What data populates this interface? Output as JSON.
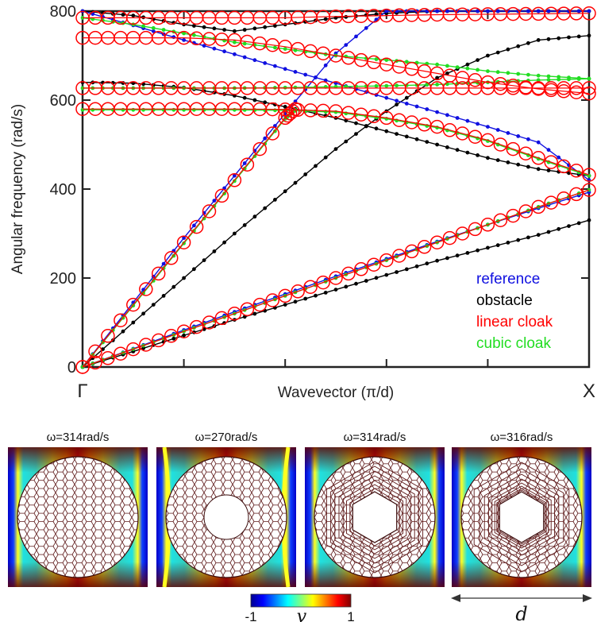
{
  "chart_data": {
    "type": "line",
    "xlabel": "Wavevector (π/d)",
    "ylabel": "Angular frequency (rad/s)",
    "ylim": [
      0,
      800
    ],
    "y_ticks": [
      "0",
      "200",
      "400",
      "600",
      "800"
    ],
    "x_range": [
      0,
      1
    ],
    "x_tick_labels": [
      {
        "value": 0,
        "label": "Γ"
      },
      {
        "value": 1,
        "label": "X"
      }
    ],
    "legend_position": "bottom-right",
    "legend": [
      {
        "label": "reference",
        "color": "#1010e0"
      },
      {
        "label": "obstacle",
        "color": "#000000"
      },
      {
        "label": "linear cloak",
        "color": "#ff0000"
      },
      {
        "label": "cubic cloak",
        "color": "#22dd22"
      }
    ],
    "series": [
      {
        "key": "reference",
        "color": "#1010e0",
        "marker": "dot",
        "bands": [
          {
            "x": [
              0,
              0.1,
              0.2,
              0.3,
              0.4,
              0.5,
              0.6,
              0.7,
              0.8,
              0.9,
              1.0
            ],
            "y": [
              0,
              41,
              83,
              124,
              164,
              204,
              243,
              282,
              320,
              357,
              393
            ]
          },
          {
            "x": [
              0,
              0.1,
              0.2,
              0.3,
              0.4,
              0.5,
              0.6,
              0.7,
              0.8,
              0.9,
              1.0
            ],
            "y": [
              0,
              145,
              290,
              430,
              570,
              705,
              800,
              800,
              800,
              800,
              800
            ]
          },
          {
            "x": [
              0,
              0.1,
              0.2,
              0.3,
              0.4,
              0.5,
              0.6,
              0.7,
              0.8,
              0.9,
              1.0
            ],
            "y": [
              800,
              768,
              735,
              703,
              670,
              638,
              605,
              573,
              540,
              505,
              420
            ]
          }
        ]
      },
      {
        "key": "obstacle",
        "color": "#000000",
        "marker": "dot",
        "bands": [
          {
            "x": [
              0,
              0.1,
              0.2,
              0.3,
              0.4,
              0.5,
              0.6,
              0.7,
              0.8,
              0.9,
              1.0
            ],
            "y": [
              0,
              35,
              71,
              106,
              140,
              174,
              207,
              239,
              268,
              297,
              330
            ]
          },
          {
            "x": [
              0,
              0.1,
              0.2,
              0.3,
              0.4,
              0.5,
              0.6,
              0.7,
              0.8,
              0.9,
              1.0
            ],
            "y": [
              0,
              100,
              200,
              300,
              395,
              490,
              575,
              650,
              700,
              735,
              745
            ]
          },
          {
            "x": [
              0,
              0.1,
              0.2,
              0.3,
              0.4,
              0.5,
              0.6,
              0.7,
              0.8,
              0.9,
              1.0
            ],
            "y": [
              640,
              638,
              628,
              610,
              585,
              560,
              530,
              500,
              470,
              445,
              430
            ]
          },
          {
            "x": [
              0,
              0.1,
              0.2,
              0.3,
              0.4,
              0.5,
              0.6,
              0.7,
              0.8,
              0.9,
              1.0
            ],
            "y": [
              800,
              790,
              770,
              755,
              770,
              785,
              795,
              800,
              800,
              800,
              800
            ]
          }
        ]
      },
      {
        "key": "linear cloak",
        "color": "#ff0000",
        "marker": "circle",
        "bands": [
          {
            "x": [
              0,
              0.1,
              0.2,
              0.3,
              0.4,
              0.5,
              0.6,
              0.7,
              0.8,
              0.9,
              1.0
            ],
            "y": [
              0,
              40,
              80,
              120,
              160,
              200,
              240,
              280,
              320,
              360,
              398
            ]
          },
          {
            "x": [
              0,
              0.1,
              0.2,
              0.3,
              0.4,
              0.42
            ],
            "y": [
              0,
              140,
              280,
              420,
              560,
              580
            ]
          },
          {
            "x": [
              0,
              0.1,
              0.2,
              0.3,
              0.4,
              0.5,
              0.6,
              0.7,
              0.8,
              0.9,
              1.0
            ],
            "y": [
              580,
              580,
              580,
              580,
              579,
              575,
              560,
              540,
              510,
              470,
              432
            ]
          },
          {
            "x": [
              0,
              0.1,
              0.2,
              0.3,
              0.4,
              0.5,
              0.6,
              0.7,
              0.8,
              0.9,
              1.0
            ],
            "y": [
              627,
              627,
              627,
              627,
              627,
              627,
              627,
              627,
              627,
              627,
              627
            ]
          },
          {
            "x": [
              0,
              0.1,
              0.2,
              0.3,
              0.4,
              0.5,
              0.6,
              0.7,
              0.8,
              0.9,
              1.0
            ],
            "y": [
              740,
              740,
              740,
              735,
              720,
              700,
              680,
              660,
              640,
              625,
              615
            ]
          },
          {
            "x": [
              0,
              0.1,
              0.2,
              0.3,
              0.4,
              0.5,
              0.6,
              0.7,
              0.8,
              0.9,
              1.0
            ],
            "y": [
              785,
              785,
              785,
              785,
              785,
              788,
              790,
              792,
              793,
              794,
              795
            ]
          }
        ]
      },
      {
        "key": "cubic cloak",
        "color": "#22dd22",
        "marker": "dot",
        "bands": [
          {
            "x": [
              0,
              0.1,
              0.2,
              0.3,
              0.4,
              0.5,
              0.6,
              0.7,
              0.8,
              0.9,
              1.0
            ],
            "y": [
              0,
              40,
              80,
              120,
              160,
              200,
              240,
              280,
              320,
              360,
              398
            ]
          },
          {
            "x": [
              0,
              0.1,
              0.2,
              0.3,
              0.4,
              0.42
            ],
            "y": [
              0,
              138,
              278,
              418,
              558,
              578
            ]
          },
          {
            "x": [
              0,
              0.1,
              0.2,
              0.3,
              0.4,
              0.5,
              0.6,
              0.7,
              0.8,
              0.9,
              1.0
            ],
            "y": [
              578,
              578,
              578,
              578,
              577,
              573,
              558,
              538,
              508,
              468,
              430
            ]
          },
          {
            "x": [
              0,
              0.1,
              0.2,
              0.3,
              0.4,
              0.5,
              0.6,
              0.7,
              0.8,
              0.9,
              1.0
            ],
            "y": [
              627,
              627,
              627,
              627,
              628,
              630,
              632,
              635,
              640,
              645,
              648
            ]
          },
          {
            "x": [
              0,
              0.1,
              0.2,
              0.3,
              0.4,
              0.5,
              0.6,
              0.7,
              0.8,
              0.9,
              1.0
            ],
            "y": [
              785,
              770,
              750,
              730,
              715,
              700,
              690,
              680,
              665,
              655,
              648
            ]
          }
        ]
      }
    ]
  },
  "panels": [
    {
      "label": "ω=314rad/s",
      "variant": "reference"
    },
    {
      "label": "ω=270rad/s",
      "variant": "obstacle"
    },
    {
      "label": "ω=314rad/s",
      "variant": "linear"
    },
    {
      "label": "ω=316rad/s",
      "variant": "cubic"
    }
  ],
  "colorbar": {
    "min_label": "-1",
    "max_label": "1",
    "symbol": "v"
  },
  "dimension_label": "d",
  "colors": {
    "tick_mark": "#222222",
    "lattice": "#5a1414"
  }
}
